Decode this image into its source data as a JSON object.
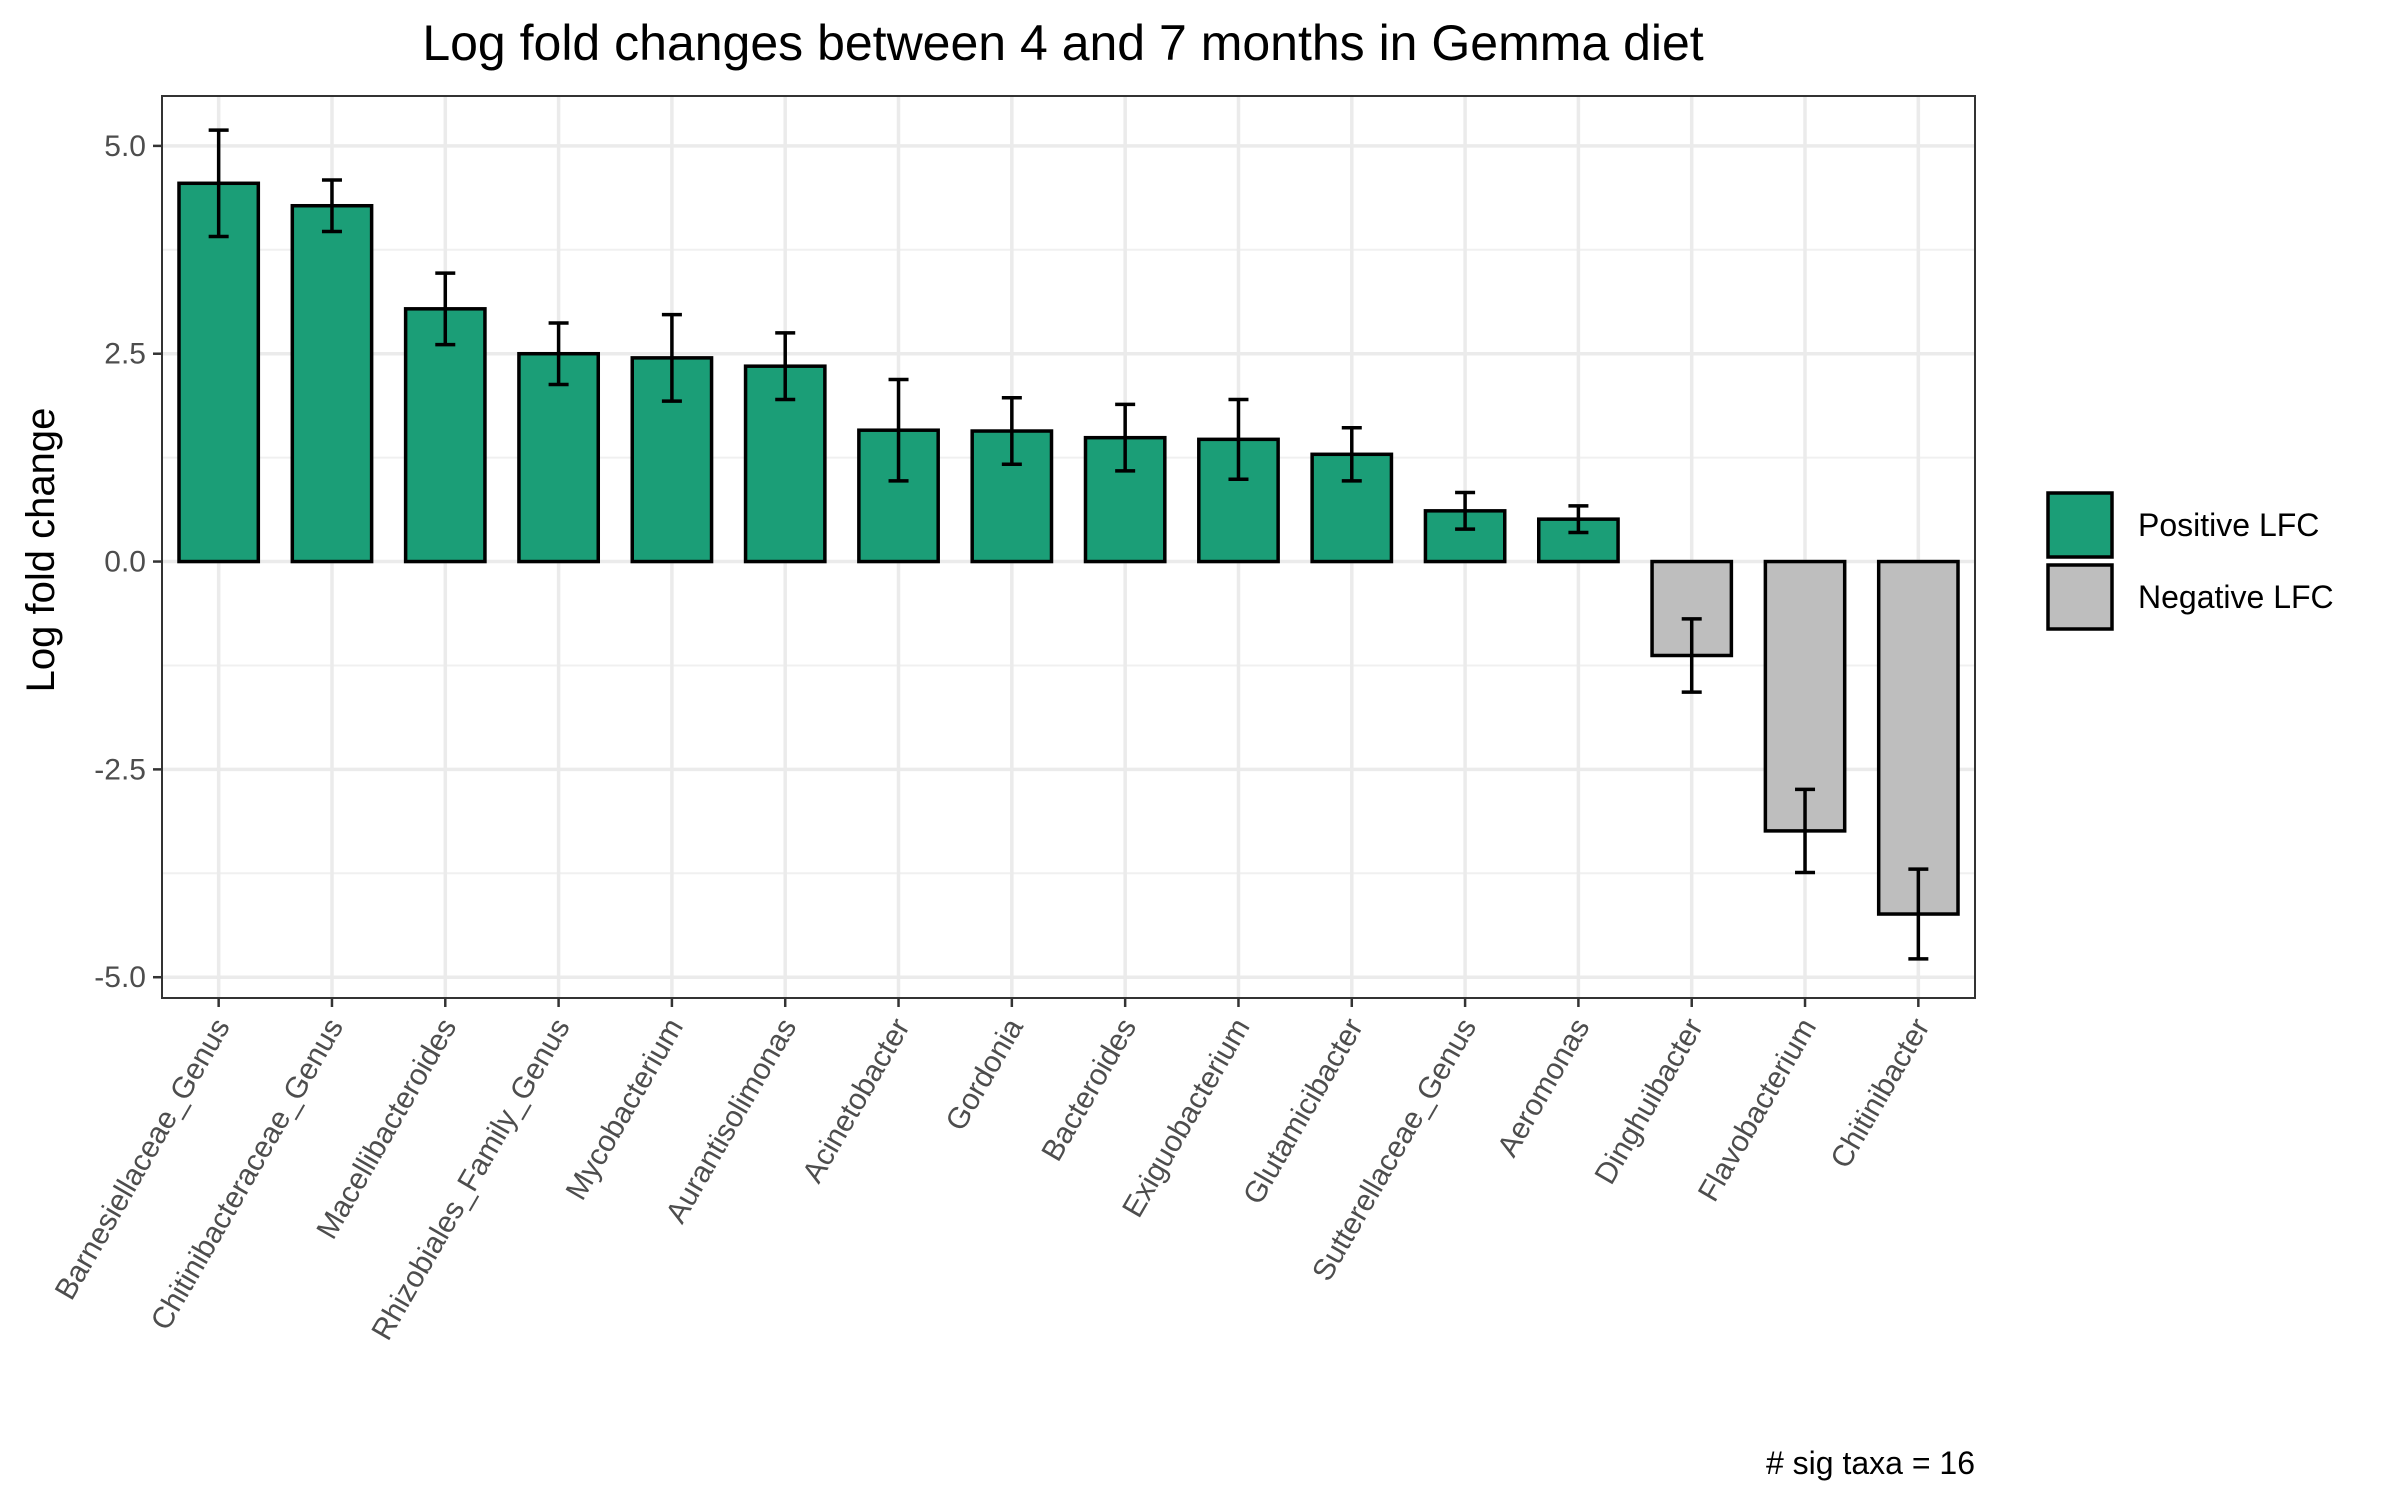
{
  "chart_data": {
    "type": "bar",
    "title": "Log fold changes between 4 and 7 months in Gemma diet",
    "xlabel": "",
    "ylabel": "Log fold change",
    "ylim": [
      -5.25,
      5.6
    ],
    "yticks": [
      -5.0,
      -2.5,
      0.0,
      2.5,
      5.0
    ],
    "ytick_labels": [
      "-5.0",
      "-2.5",
      "0.0",
      "2.5",
      "5.0"
    ],
    "grid": true,
    "legend_position": "right",
    "caption": "# sig taxa = 16",
    "categories": [
      "Barnesiellaceae_Genus",
      "Chitinibacteraceae_Genus",
      "Macellibacteroides",
      "Rhizobiales_Family_Genus",
      "Mycobacterium",
      "Aurantisolimonas",
      "Acinetobacter",
      "Gordonia",
      "Bacteroides",
      "Exiguobacterium",
      "Glutamicibacter",
      "Sutterellaceae_Genus",
      "Aeromonas",
      "Dinghuibacter",
      "Flavobacterium",
      "Chitinibacter"
    ],
    "values": [
      4.55,
      4.28,
      3.04,
      2.5,
      2.45,
      2.35,
      1.58,
      1.57,
      1.49,
      1.47,
      1.29,
      0.61,
      0.51,
      -1.13,
      -3.24,
      -4.24
    ],
    "error_low": [
      3.91,
      3.97,
      2.61,
      2.13,
      1.93,
      1.95,
      0.97,
      1.17,
      1.09,
      0.99,
      0.97,
      0.39,
      0.35,
      -1.57,
      -3.74,
      -4.78
    ],
    "error_high": [
      5.19,
      4.59,
      3.47,
      2.87,
      2.97,
      2.75,
      2.19,
      1.97,
      1.89,
      1.95,
      1.61,
      0.83,
      0.67,
      -0.69,
      -2.74,
      -3.7
    ],
    "legend": [
      {
        "label": "Positive LFC",
        "color": "#1b9e77"
      },
      {
        "label": "Negative LFC",
        "color": "#bebebe"
      }
    ],
    "colors": {
      "positive": "#1b9e77",
      "negative": "#bebebe"
    }
  }
}
